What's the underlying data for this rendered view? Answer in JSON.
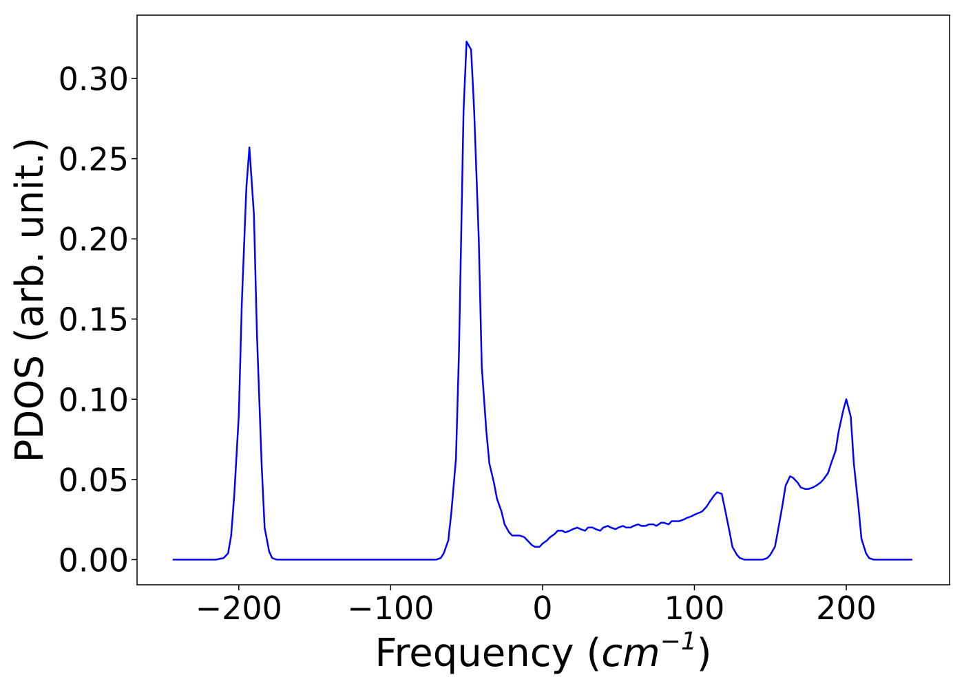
{
  "chart_data": {
    "type": "line",
    "title": "",
    "xlabel": {
      "prefix": "Frequency (",
      "unit": "cm",
      "exponent": "−1",
      "suffix": ")"
    },
    "ylabel": "PDOS (arb. unit.)",
    "xlim": [
      -267,
      268
    ],
    "ylim": [
      -0.0157,
      0.3395
    ],
    "xticks": [
      -200,
      -100,
      0,
      100,
      200
    ],
    "xtick_labels": [
      "−200",
      "−100",
      "0",
      "100",
      "200"
    ],
    "yticks": [
      0.0,
      0.05,
      0.1,
      0.15,
      0.2,
      0.25,
      0.3
    ],
    "ytick_labels": [
      "0.00",
      "0.05",
      "0.10",
      "0.15",
      "0.20",
      "0.25",
      "0.30"
    ],
    "grid": false,
    "legend": null,
    "series": [
      {
        "color": "#0000ff",
        "x": [
          -243,
          -215,
          -210,
          -207,
          -205,
          -203,
          -200,
          -198,
          -195,
          -193,
          -190,
          -188,
          -185,
          -183,
          -180,
          -178,
          -175,
          -160,
          -140,
          -120,
          -100,
          -80,
          -70,
          -67,
          -65,
          -62,
          -60,
          -57,
          -55,
          -52,
          -50,
          -47,
          -45,
          -42,
          -40,
          -37,
          -35,
          -32,
          -30,
          -27,
          -25,
          -22,
          -20,
          -17,
          -15,
          -12,
          -10,
          -7,
          -5,
          -2,
          0,
          3,
          5,
          8,
          10,
          13,
          15,
          18,
          20,
          23,
          25,
          28,
          30,
          33,
          35,
          38,
          40,
          43,
          45,
          48,
          50,
          53,
          55,
          58,
          60,
          63,
          65,
          68,
          70,
          73,
          75,
          78,
          80,
          83,
          85,
          88,
          90,
          93,
          95,
          98,
          100,
          105,
          108,
          110,
          113,
          115,
          118,
          120,
          123,
          125,
          128,
          130,
          133,
          135,
          140,
          145,
          148,
          150,
          153,
          155,
          158,
          160,
          163,
          165,
          168,
          170,
          173,
          175,
          178,
          180,
          183,
          185,
          188,
          190,
          193,
          195,
          198,
          200,
          203,
          205,
          208,
          210,
          213,
          215,
          218,
          220,
          230,
          243
        ],
        "y": [
          0.0,
          0.0,
          0.001,
          0.004,
          0.015,
          0.04,
          0.09,
          0.16,
          0.232,
          0.257,
          0.215,
          0.14,
          0.06,
          0.02,
          0.005,
          0.001,
          0.0,
          0.0,
          0.0,
          0.0,
          0.0,
          0.0,
          0.0,
          0.001,
          0.004,
          0.012,
          0.03,
          0.063,
          0.13,
          0.28,
          0.323,
          0.318,
          0.28,
          0.2,
          0.12,
          0.08,
          0.06,
          0.048,
          0.038,
          0.03,
          0.022,
          0.017,
          0.015,
          0.015,
          0.015,
          0.014,
          0.012,
          0.009,
          0.008,
          0.008,
          0.01,
          0.012,
          0.014,
          0.016,
          0.018,
          0.018,
          0.017,
          0.018,
          0.019,
          0.02,
          0.019,
          0.018,
          0.02,
          0.02,
          0.019,
          0.018,
          0.02,
          0.021,
          0.02,
          0.019,
          0.02,
          0.021,
          0.02,
          0.02,
          0.021,
          0.022,
          0.021,
          0.021,
          0.022,
          0.022,
          0.021,
          0.023,
          0.023,
          0.022,
          0.024,
          0.024,
          0.024,
          0.025,
          0.026,
          0.027,
          0.028,
          0.03,
          0.033,
          0.036,
          0.04,
          0.042,
          0.041,
          0.032,
          0.018,
          0.008,
          0.003,
          0.001,
          0.0,
          0.0,
          0.0,
          0.0,
          0.001,
          0.003,
          0.008,
          0.018,
          0.034,
          0.046,
          0.052,
          0.051,
          0.048,
          0.045,
          0.044,
          0.044,
          0.045,
          0.046,
          0.048,
          0.05,
          0.054,
          0.06,
          0.068,
          0.08,
          0.093,
          0.1,
          0.089,
          0.06,
          0.033,
          0.013,
          0.004,
          0.001,
          0.0,
          0.0,
          0.0,
          0.0
        ]
      }
    ]
  }
}
